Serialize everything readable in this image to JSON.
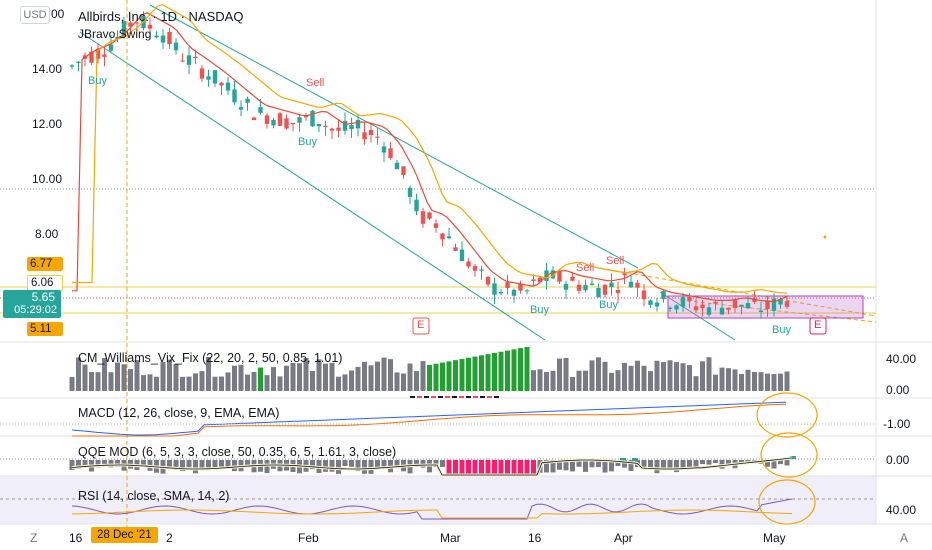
{
  "currency_button": "USD",
  "symbol_title": "Allbirds, Inc. · 1D · NASDAQ",
  "indicator_overlay": "JBravo Swing",
  "price_axis": [
    "14.00",
    "12.00",
    "10.00",
    "8.00"
  ],
  "top_partial_tick": "00",
  "price_badges": {
    "high": "6.77",
    "mid": "6.06",
    "last": "5.65",
    "countdown": "05:29:02",
    "low": "5.11"
  },
  "signal_labels": {
    "buy": "Buy",
    "sell": "Sell",
    "earnings": "E"
  },
  "panes": {
    "vix": {
      "title": "CM_Williams_Vix_Fix (22, 20, 2, 50, 0.85, 1.01)",
      "axis": [
        "40.00",
        "0.00"
      ]
    },
    "macd": {
      "title": "MACD (12, 26, close, 9, EMA, EMA)",
      "axis": [
        "-1.00"
      ]
    },
    "qqe": {
      "title": "QQE MOD (6, 5, 3, 3, close, 50, 0.35, 6, 5, 1.61, 3, close)",
      "axis": [
        "0.00"
      ]
    },
    "rsi": {
      "title": "RSI (14, close, SMA, 14, 2)",
      "axis": [
        "40.00"
      ]
    }
  },
  "time_axis": {
    "first": "16",
    "crosshair_date": "28 Dec '21",
    "after_crosshair": "2",
    "labels": [
      "Feb",
      "Mar",
      "16",
      "Apr",
      "May"
    ]
  },
  "corner_buttons": {
    "zoom": "Z",
    "auto": "A"
  },
  "colors": {
    "up": "#26a69a",
    "down": "#ef5350",
    "ma_fast": "#e84b3a",
    "ma_slow": "#f2a900",
    "channel": "#26a69a",
    "vix_gray": "#787b86",
    "vix_green": "#1fa22e",
    "qqe_pink": "#ff1a6c",
    "macd_blue": "#2962ff",
    "macd_orange": "#ff6d00",
    "rsi_purple": "#7e57c2",
    "badge_orange": "#f7a600",
    "badge_teal": "#26a69a"
  }
}
